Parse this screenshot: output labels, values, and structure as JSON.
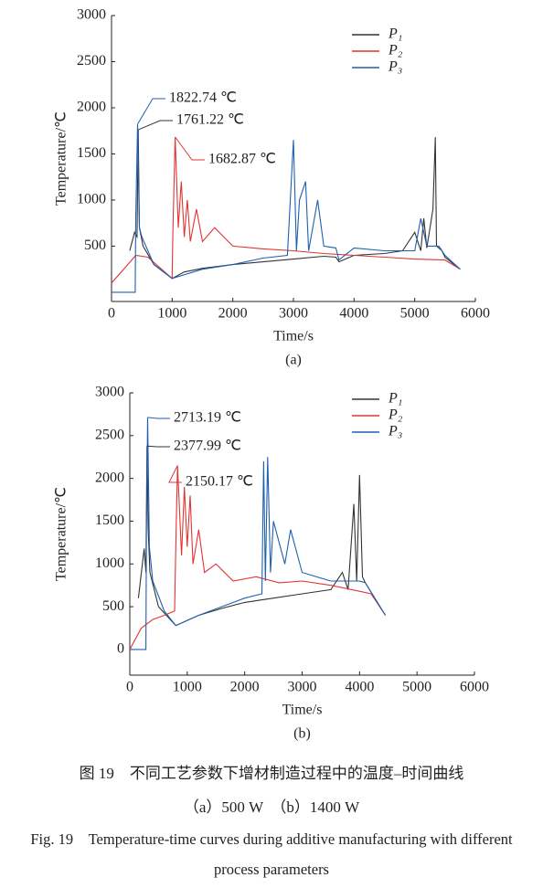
{
  "chart_data": [
    {
      "type": "line",
      "label": "(a)",
      "x_label": "Time/s",
      "y_label": "Temperature/℃",
      "xlim": [
        0,
        6000
      ],
      "xticks": [
        0,
        1000,
        2000,
        3000,
        4000,
        5000,
        6000
      ],
      "ylim": [
        -100,
        3000
      ],
      "yticks": [
        500,
        1000,
        1500,
        2000,
        2500,
        3000
      ],
      "series": [
        {
          "name": "P₁",
          "color": "#333333",
          "x": [
            300,
            380,
            420,
            440,
            460,
            520,
            700,
            1000,
            1200,
            1500,
            2000,
            2500,
            3000,
            3500,
            3700,
            3750,
            4000,
            4500,
            4800,
            5000,
            5100,
            5150,
            5200,
            5300,
            5340,
            5360,
            5450,
            5500,
            5750
          ],
          "values": [
            450,
            650,
            600,
            1761.22,
            700,
            500,
            300,
            150,
            220,
            260,
            300,
            330,
            360,
            390,
            380,
            330,
            400,
            420,
            450,
            650,
            450,
            800,
            480,
            900,
            1682,
            500,
            450,
            380,
            250
          ]
        },
        {
          "name": "P₂",
          "color": "#e03434",
          "x": [
            0,
            200,
            400,
            600,
            1000,
            1010,
            1050,
            1100,
            1150,
            1200,
            1250,
            1300,
            1400,
            1500,
            1700,
            2000,
            2500,
            3000,
            3500,
            4000,
            4500,
            5000,
            5500,
            5750
          ],
          "values": [
            100,
            250,
            400,
            380,
            150,
            600,
            1682.87,
            700,
            1200,
            600,
            1000,
            550,
            900,
            550,
            700,
            500,
            470,
            450,
            420,
            400,
            380,
            360,
            350,
            250
          ]
        },
        {
          "name": "P₃",
          "color": "#1f5fb0",
          "x": [
            0,
            390,
            400,
            430,
            460,
            500,
            700,
            1000,
            1500,
            2000,
            2500,
            2900,
            3000,
            3050,
            3100,
            3200,
            3250,
            3400,
            3500,
            3700,
            3750,
            4000,
            4500,
            5000,
            5100,
            5200,
            5400,
            5500,
            5750
          ],
          "values": [
            0,
            0,
            800,
            1822.74,
            700,
            600,
            300,
            150,
            250,
            300,
            370,
            400,
            1650,
            450,
            1000,
            1200,
            450,
            1000,
            500,
            480,
            350,
            480,
            450,
            450,
            800,
            500,
            500,
            400,
            250
          ]
        }
      ],
      "annotations": [
        {
          "text": "1822.74 ℃"
        },
        {
          "text": "1761.22 ℃"
        },
        {
          "text": "1682.87 ℃"
        }
      ]
    },
    {
      "type": "line",
      "label": "(b)",
      "x_label": "Time/s",
      "y_label": "Temperature/℃",
      "xlim": [
        0,
        6000
      ],
      "xticks": [
        0,
        1000,
        2000,
        3000,
        4000,
        5000,
        6000
      ],
      "ylim": [
        -300,
        3000
      ],
      "yticks": [
        0,
        500,
        1000,
        1500,
        2000,
        2500,
        3000
      ],
      "series": [
        {
          "name": "P₁",
          "color": "#333333",
          "x": [
            150,
            250,
            280,
            300,
            320,
            350,
            500,
            800,
            1200,
            1600,
            2000,
            2500,
            3000,
            3500,
            3700,
            3800,
            3900,
            3950,
            4000,
            4050,
            4100,
            4450
          ],
          "values": [
            600,
            1180,
            900,
            2377.99,
            1400,
            900,
            500,
            280,
            400,
            480,
            550,
            600,
            650,
            700,
            900,
            700,
            1700,
            800,
            2040,
            850,
            780,
            400
          ]
        },
        {
          "name": "P₂",
          "color": "#e03434",
          "x": [
            0,
            200,
            400,
            600,
            780,
            800,
            830,
            900,
            950,
            1000,
            1050,
            1100,
            1200,
            1300,
            1500,
            1800,
            2200,
            2600,
            3000,
            3500,
            4000,
            4200,
            4450
          ],
          "values": [
            0,
            250,
            350,
            400,
            450,
            1200,
            2150.17,
            1100,
            1900,
            1200,
            1800,
            1000,
            1400,
            900,
            1000,
            800,
            850,
            780,
            800,
            750,
            680,
            650,
            400
          ]
        },
        {
          "name": "P₃",
          "color": "#1f5fb0",
          "x": [
            0,
            280,
            290,
            310,
            340,
            400,
            600,
            800,
            1200,
            1600,
            2000,
            2300,
            2330,
            2360,
            2400,
            2450,
            2500,
            2700,
            2800,
            3000,
            3500,
            4000,
            4100,
            4450
          ],
          "values": [
            0,
            0,
            1400,
            2713.19,
            1200,
            800,
            450,
            280,
            400,
            500,
            600,
            650,
            2200,
            800,
            2250,
            900,
            1500,
            1000,
            1400,
            900,
            800,
            800,
            780,
            400
          ]
        }
      ],
      "annotations": [
        {
          "text": "2713.19 ℃"
        },
        {
          "text": "2377.99 ℃"
        },
        {
          "text": "2150.17 ℃"
        }
      ]
    }
  ],
  "figure": {
    "caption_cn": "图 19　不同工艺参数下增材制造过程中的温度–时间曲线",
    "subcaption": "（a）500 W　（b）1400 W",
    "caption_en": "Fig. 19　Temperature-time curves during additive manufacturing with different process parameters"
  }
}
